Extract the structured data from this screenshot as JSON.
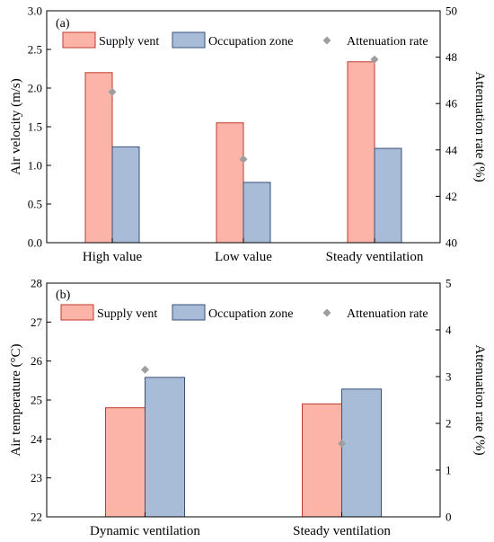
{
  "chart_data": [
    {
      "type": "bar",
      "panel_label": "(a)",
      "categories": [
        "High value",
        "Low value",
        "Steady ventilation"
      ],
      "series": [
        {
          "name": "Supply vent",
          "axis": "left",
          "values": [
            2.2,
            1.55,
            2.34
          ]
        },
        {
          "name": "Occupation zone",
          "axis": "left",
          "values": [
            1.24,
            0.78,
            1.22
          ]
        },
        {
          "name": "Attenuation rate",
          "axis": "right",
          "kind": "scatter",
          "values": [
            46.5,
            43.6,
            47.9
          ]
        }
      ],
      "ylabel": "Air velocity (m/s)",
      "ylim": [
        0,
        3.0
      ],
      "yticks": [
        "0.0",
        "0.5",
        "1.0",
        "1.5",
        "2.0",
        "2.5",
        "3.0"
      ],
      "y2label": "Attenuation rate (%)",
      "y2lim": [
        40,
        50
      ],
      "y2ticks": [
        "40",
        "42",
        "44",
        "46",
        "48",
        "50"
      ],
      "legend": "top",
      "grid": false
    },
    {
      "type": "bar",
      "panel_label": "(b)",
      "categories": [
        "Dynamic ventilation",
        "Steady ventilation"
      ],
      "series": [
        {
          "name": "Supply vent",
          "axis": "left",
          "values": [
            24.8,
            24.9
          ]
        },
        {
          "name": "Occupation zone",
          "axis": "left",
          "values": [
            25.58,
            25.28
          ]
        },
        {
          "name": "Attenuation rate",
          "axis": "right",
          "kind": "scatter",
          "values": [
            3.15,
            1.57
          ]
        }
      ],
      "ylabel": "Air temperature (°C)",
      "ylim": [
        22,
        28
      ],
      "yticks": [
        "22",
        "23",
        "24",
        "25",
        "26",
        "27",
        "28"
      ],
      "y2label": "Attenuation rate (%)",
      "y2lim": [
        0,
        5
      ],
      "y2ticks": [
        "0",
        "1",
        "2",
        "3",
        "4",
        "5"
      ],
      "legend": "top",
      "grid": false
    }
  ],
  "colors": {
    "supply_fill": "#fcb4a8",
    "supply_stroke": "#c0392b",
    "occupation_fill": "#a8bcd8",
    "occupation_stroke": "#3a4f7a",
    "marker": "#9e9e9e"
  }
}
